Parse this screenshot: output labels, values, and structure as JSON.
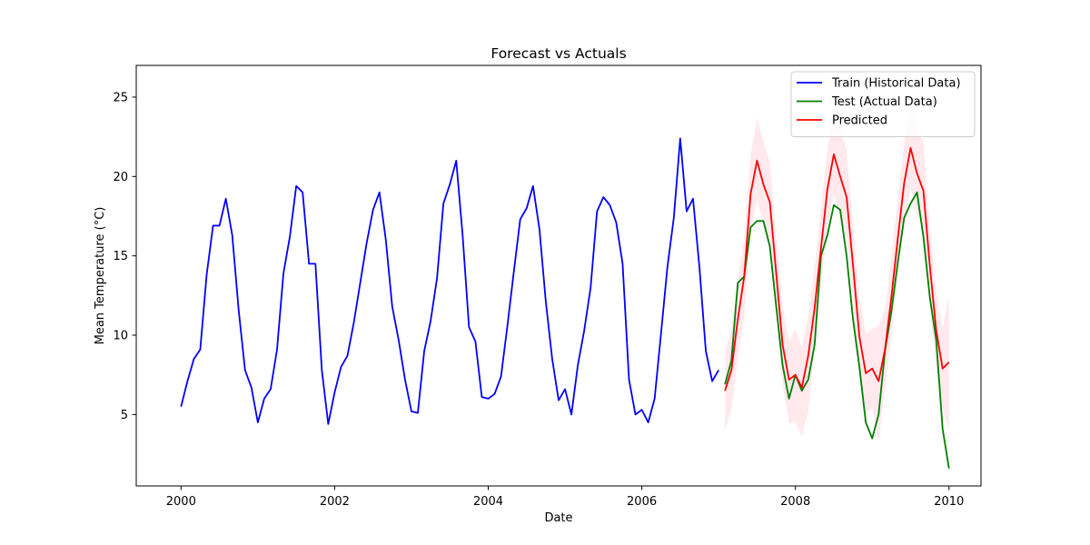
{
  "chart_data": {
    "type": "line",
    "title": "Forecast vs Actuals",
    "xlabel": "Date",
    "ylabel": "Mean Temperature (°C)",
    "xlim": [
      "1999-06-01",
      "2010-06-01"
    ],
    "ylim": [
      0.5,
      27.0
    ],
    "x_ticks": [
      "2000",
      "2002",
      "2004",
      "2006",
      "2008",
      "2010"
    ],
    "y_ticks": [
      5,
      10,
      15,
      20,
      25
    ],
    "grid": false,
    "legend_position": "top-right",
    "series": [
      {
        "name": "Train (Historical Data)",
        "color": "#0000ff",
        "style": "line",
        "x": [
          "2000-01",
          "2000-02",
          "2000-03",
          "2000-04",
          "2000-05",
          "2000-06",
          "2000-07",
          "2000-08",
          "2000-09",
          "2000-10",
          "2000-11",
          "2000-12",
          "2001-01",
          "2001-02",
          "2001-03",
          "2001-04",
          "2001-05",
          "2001-06",
          "2001-07",
          "2001-08",
          "2001-09",
          "2001-10",
          "2001-11",
          "2001-12",
          "2002-01",
          "2002-02",
          "2002-03",
          "2002-04",
          "2002-05",
          "2002-06",
          "2002-07",
          "2002-08",
          "2002-09",
          "2002-10",
          "2002-11",
          "2002-12",
          "2003-01",
          "2003-02",
          "2003-03",
          "2003-04",
          "2003-05",
          "2003-06",
          "2003-07",
          "2003-08",
          "2003-09",
          "2003-10",
          "2003-11",
          "2003-12",
          "2004-01",
          "2004-02",
          "2004-03",
          "2004-04",
          "2004-05",
          "2004-06",
          "2004-07",
          "2004-08",
          "2004-09",
          "2004-10",
          "2004-11",
          "2004-12",
          "2005-01",
          "2005-02",
          "2005-03",
          "2005-04",
          "2005-05",
          "2005-06",
          "2005-07",
          "2005-08",
          "2005-09",
          "2005-10",
          "2005-11",
          "2005-12",
          "2006-01",
          "2006-02",
          "2006-03",
          "2006-04",
          "2006-05",
          "2006-06",
          "2006-07",
          "2006-08",
          "2006-09",
          "2006-10",
          "2006-11",
          "2006-12",
          "2007-01"
        ],
        "values": [
          5.5,
          7.1,
          8.5,
          9.1,
          13.8,
          16.9,
          16.9,
          18.6,
          16.3,
          11.6,
          7.8,
          6.7,
          4.5,
          6.0,
          6.6,
          9.1,
          13.9,
          16.2,
          19.4,
          19.0,
          14.5,
          14.5,
          7.8,
          4.4,
          6.4,
          8.0,
          8.7,
          10.8,
          13.3,
          15.8,
          17.9,
          19.0,
          16.0,
          11.8,
          9.7,
          7.2,
          5.2,
          5.1,
          9.0,
          10.9,
          13.6,
          18.3,
          19.5,
          21.0,
          16.3,
          10.5,
          9.6,
          6.1,
          6.0,
          6.3,
          7.4,
          10.6,
          14.0,
          17.3,
          18.0,
          19.4,
          16.7,
          12.1,
          8.5,
          5.9,
          6.6,
          5.0,
          8.1,
          10.3,
          13.0,
          17.8,
          18.7,
          18.2,
          17.1,
          14.5,
          7.2,
          5.0,
          5.3,
          4.5,
          6.0,
          10.1,
          14.3,
          17.4,
          22.4,
          17.8,
          18.6,
          14.3,
          9.0,
          7.1,
          7.8
        ]
      },
      {
        "name": "Test (Actual Data)",
        "color": "#008000",
        "style": "line",
        "x": [
          "2007-02",
          "2007-03",
          "2007-04",
          "2007-05",
          "2007-06",
          "2007-07",
          "2007-08",
          "2007-09",
          "2007-10",
          "2007-11",
          "2007-12",
          "2008-01",
          "2008-02",
          "2008-03",
          "2008-04",
          "2008-05",
          "2008-06",
          "2008-07",
          "2008-08",
          "2008-09",
          "2008-10",
          "2008-11",
          "2008-12",
          "2009-01",
          "2009-02",
          "2009-03",
          "2009-04",
          "2009-05",
          "2009-06",
          "2009-07",
          "2009-08",
          "2009-09",
          "2009-10",
          "2009-11",
          "2009-12",
          "2010-01"
        ],
        "values": [
          6.9,
          8.4,
          13.3,
          13.7,
          16.8,
          17.2,
          17.2,
          15.6,
          11.8,
          8.1,
          6.0,
          7.5,
          6.5,
          7.2,
          9.4,
          15.0,
          16.3,
          18.2,
          17.9,
          15.0,
          11.0,
          8.0,
          4.5,
          3.5,
          5.0,
          9.0,
          11.5,
          14.6,
          17.4,
          18.3,
          19.0,
          16.2,
          12.4,
          9.7,
          4.1,
          1.6
        ]
      },
      {
        "name": "Predicted",
        "color": "#ff0000",
        "style": "line",
        "x": [
          "2007-02",
          "2007-03",
          "2007-04",
          "2007-05",
          "2007-06",
          "2007-07",
          "2007-08",
          "2007-09",
          "2007-10",
          "2007-11",
          "2007-12",
          "2008-01",
          "2008-02",
          "2008-03",
          "2008-04",
          "2008-05",
          "2008-06",
          "2008-07",
          "2008-08",
          "2008-09",
          "2008-10",
          "2008-11",
          "2008-12",
          "2009-01",
          "2009-02",
          "2009-03",
          "2009-04",
          "2009-05",
          "2009-06",
          "2009-07",
          "2009-08",
          "2009-09",
          "2009-10",
          "2009-11",
          "2009-12",
          "2010-01"
        ],
        "values": [
          6.5,
          7.8,
          11.0,
          13.7,
          18.9,
          21.0,
          19.5,
          18.4,
          13.9,
          9.4,
          7.2,
          7.5,
          6.7,
          8.7,
          11.7,
          15.5,
          19.2,
          21.4,
          20.0,
          18.7,
          14.4,
          9.9,
          7.6,
          7.9,
          7.1,
          9.1,
          12.4,
          16.1,
          19.6,
          21.8,
          20.2,
          19.1,
          14.4,
          10.3,
          7.9,
          8.3
        ]
      },
      {
        "name": "",
        "color": "#ffc0cb",
        "style": "band",
        "x": [
          "2007-02",
          "2007-03",
          "2007-04",
          "2007-05",
          "2007-06",
          "2007-07",
          "2007-08",
          "2007-09",
          "2007-10",
          "2007-11",
          "2007-12",
          "2008-01",
          "2008-02",
          "2008-03",
          "2008-04",
          "2008-05",
          "2008-06",
          "2008-07",
          "2008-08",
          "2008-09",
          "2008-10",
          "2008-11",
          "2008-12",
          "2009-01",
          "2009-02",
          "2009-03",
          "2009-04",
          "2009-05",
          "2009-06",
          "2009-07",
          "2009-08",
          "2009-09",
          "2009-10",
          "2009-11",
          "2009-12",
          "2010-01"
        ],
        "lower": [
          4.0,
          5.3,
          8.5,
          11.2,
          16.4,
          18.5,
          17.0,
          15.9,
          11.4,
          6.9,
          4.4,
          4.6,
          3.6,
          5.2,
          9.2,
          13.0,
          16.7,
          18.9,
          17.5,
          16.2,
          11.9,
          7.4,
          5.1,
          5.4,
          3.3,
          6.6,
          9.9,
          13.6,
          17.1,
          19.3,
          17.7,
          16.6,
          11.9,
          7.8,
          5.4,
          3.9
        ],
        "upper": [
          9.0,
          10.3,
          13.5,
          16.2,
          21.4,
          23.7,
          22.2,
          20.9,
          16.4,
          11.9,
          9.6,
          10.4,
          9.2,
          11.2,
          14.2,
          18.0,
          21.7,
          24.4,
          23.0,
          21.7,
          16.9,
          12.4,
          10.1,
          10.4,
          10.6,
          11.6,
          14.9,
          18.6,
          22.1,
          24.8,
          23.2,
          22.1,
          16.9,
          12.8,
          10.4,
          12.6
        ]
      }
    ]
  }
}
